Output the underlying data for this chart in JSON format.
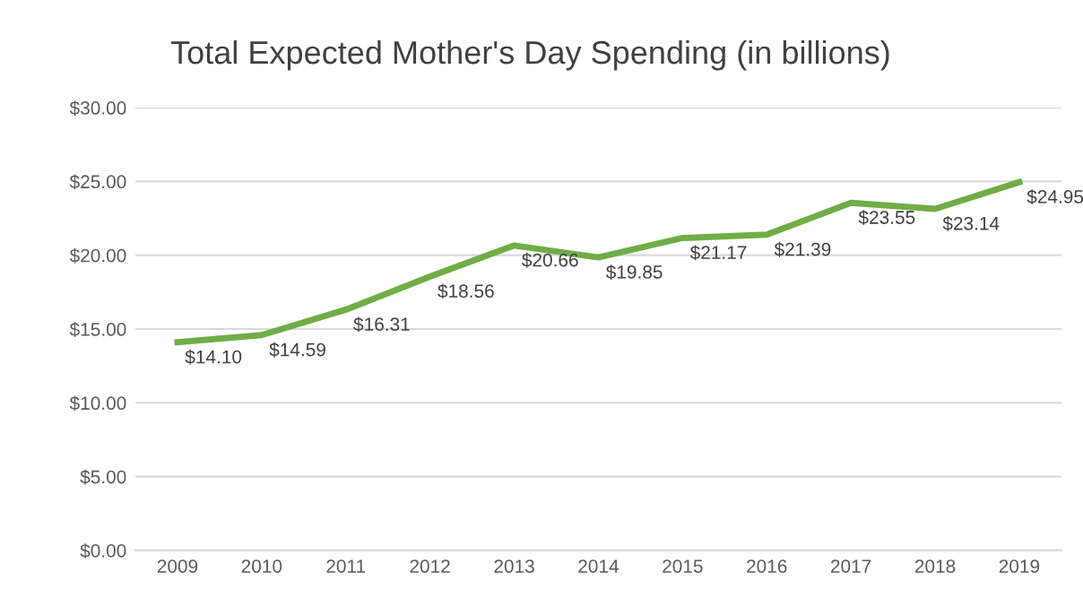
{
  "chart_data": {
    "type": "line",
    "title": "Total Expected Mother's Day Spending (in billions)",
    "categories": [
      "2009",
      "2010",
      "2011",
      "2012",
      "2013",
      "2014",
      "2015",
      "2016",
      "2017",
      "2018",
      "2019"
    ],
    "series": [
      {
        "color": "#70ad47",
        "values": [
          14.1,
          14.59,
          16.31,
          18.56,
          20.66,
          19.85,
          21.17,
          21.39,
          23.55,
          23.14,
          24.95
        ],
        "value_labels": [
          "$14.10",
          "$14.59",
          "$16.31",
          "$18.56",
          "$20.66",
          "$19.85",
          "$21.17",
          "$21.39",
          "$23.55",
          "$23.14",
          "$24.95"
        ]
      }
    ],
    "ylim": [
      0,
      30
    ],
    "yticks": [
      {
        "value": 0,
        "label": "$0.00"
      },
      {
        "value": 5,
        "label": "$5.00"
      },
      {
        "value": 10,
        "label": "$10.00"
      },
      {
        "value": 15,
        "label": "$15.00"
      },
      {
        "value": 20,
        "label": "$20.00"
      },
      {
        "value": 25,
        "label": "$25.00"
      },
      {
        "value": 30,
        "label": "$30.00"
      }
    ],
    "grid": "y",
    "marker": "none",
    "line_style": "solid",
    "legend": false
  }
}
